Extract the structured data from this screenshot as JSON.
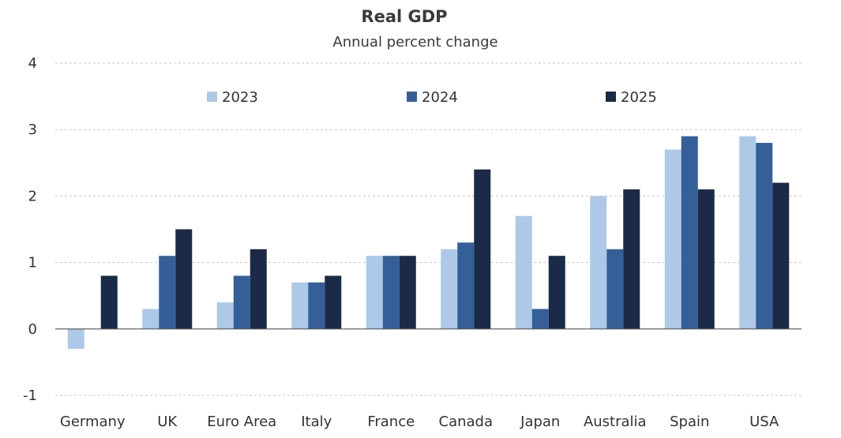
{
  "chart_data": {
    "type": "bar",
    "title": "Real GDP",
    "subtitle": "Annual percent change",
    "xlabel": "",
    "ylabel": "",
    "ylim": [
      -1,
      4
    ],
    "yticks": [
      4,
      3,
      2,
      1,
      0,
      -1
    ],
    "grid": true,
    "legend": "top-center",
    "categories": [
      "Germany",
      "UK",
      "Euro Area",
      "Italy",
      "France",
      "Canada",
      "Japan",
      "Australia",
      "Spain",
      "USA"
    ],
    "series": [
      {
        "name": "2023",
        "color": "#aec8e8",
        "values": [
          -0.3,
          0.3,
          0.4,
          0.7,
          1.1,
          1.2,
          1.7,
          2.0,
          2.7,
          2.9
        ]
      },
      {
        "name": "2024",
        "color": "#355f99",
        "values": [
          0.0,
          1.1,
          0.8,
          0.7,
          1.1,
          1.3,
          0.3,
          1.2,
          2.9,
          2.8
        ]
      },
      {
        "name": "2025",
        "color": "#1a2a47",
        "values": [
          0.8,
          1.5,
          1.2,
          0.8,
          1.1,
          2.4,
          1.1,
          2.1,
          2.1,
          2.2
        ]
      }
    ]
  }
}
